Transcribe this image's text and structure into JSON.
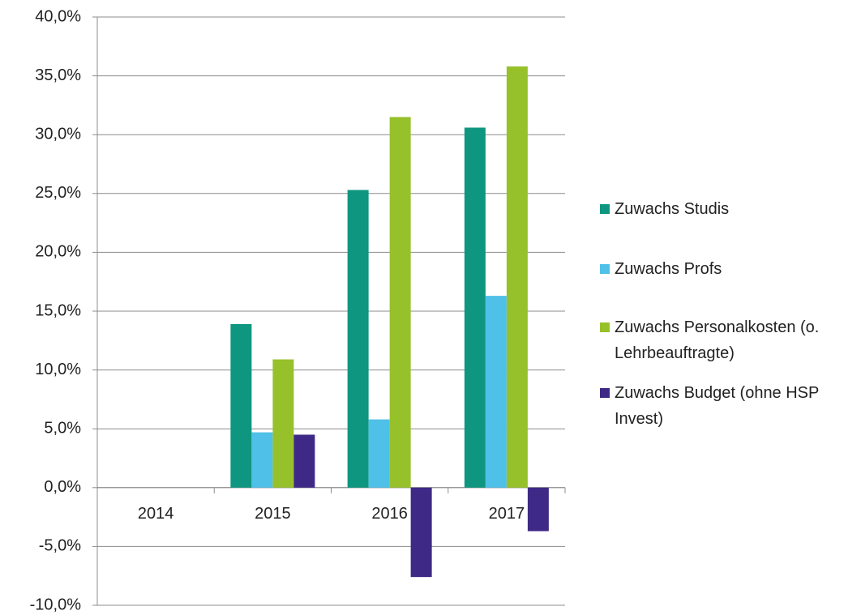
{
  "chart_data": {
    "type": "bar",
    "categories": [
      "2014",
      "2015",
      "2016",
      "2017"
    ],
    "series": [
      {
        "name": "Zuwachs Studis",
        "color": "#0f9680",
        "values": [
          0,
          13.9,
          25.3,
          30.6
        ]
      },
      {
        "name": "Zuwachs Profs",
        "color": "#4fc0e8",
        "values": [
          0,
          4.7,
          5.8,
          16.3
        ]
      },
      {
        "name": "Zuwachs Personalkosten (o. Lehrbeauftragte)",
        "color": "#97c12b",
        "values": [
          0,
          10.9,
          31.5,
          35.8
        ]
      },
      {
        "name": "Zuwachs Budget (ohne HSP Invest)",
        "color": "#3e2a86",
        "values": [
          0,
          4.5,
          -7.6,
          -3.7
        ]
      }
    ],
    "ylim": [
      -10,
      40
    ],
    "yticks": [
      {
        "value": -10,
        "label": "-10,0%"
      },
      {
        "value": -5,
        "label": "-5,0%"
      },
      {
        "value": 0,
        "label": "0,0%"
      },
      {
        "value": 5,
        "label": "5,0%"
      },
      {
        "value": 10,
        "label": "10,0%"
      },
      {
        "value": 15,
        "label": "15,0%"
      },
      {
        "value": 20,
        "label": "20,0%"
      },
      {
        "value": 25,
        "label": "25,0%"
      },
      {
        "value": 30,
        "label": "30,0%"
      },
      {
        "value": 35,
        "label": "35,0%"
      },
      {
        "value": 40,
        "label": "40,0%"
      }
    ],
    "grid": true,
    "legend": "right"
  }
}
